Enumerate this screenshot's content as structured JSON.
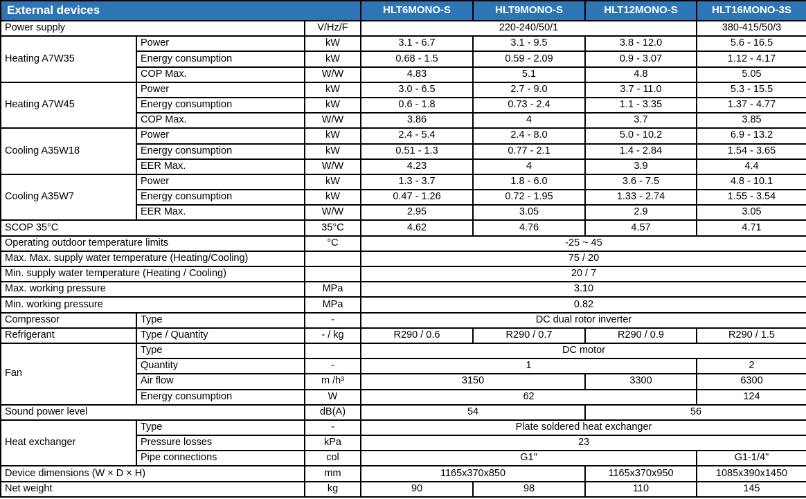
{
  "title": "External devices",
  "models": [
    "HLT6MONO-S",
    "HLT9MONO-S",
    "HLT12MONO-S",
    "HLT16MONO-3S"
  ],
  "colors": {
    "header_bg": "#2e75b6",
    "header_text": "#ffffff",
    "border": "#000000",
    "cell_bg": "#ffffff",
    "cell_text": "#000000"
  },
  "rows": [
    {
      "label": "Power supply",
      "unit": "V/Hz/F",
      "values": [
        {
          "text": "220-240/50/1",
          "span": 3
        },
        {
          "text": "380-415/50/3",
          "span": 1
        }
      ]
    },
    {
      "group": "Heating A7W35",
      "group_rowspan": 3,
      "sublabel": "Power",
      "unit": "kW",
      "values": [
        {
          "text": "3.1 - 6.7",
          "span": 1
        },
        {
          "text": "3.1 - 9.5",
          "span": 1
        },
        {
          "text": "3.8 - 12.0",
          "span": 1
        },
        {
          "text": "5.6 - 16.5",
          "span": 1
        }
      ]
    },
    {
      "sublabel": "Energy consumption",
      "unit": "kW",
      "values": [
        {
          "text": "0.68 - 1.5",
          "span": 1
        },
        {
          "text": "0.59 - 2.09",
          "span": 1
        },
        {
          "text": "0.9 - 3.07",
          "span": 1
        },
        {
          "text": "1.12 - 4.17",
          "span": 1
        }
      ]
    },
    {
      "sublabel": "COP Max.",
      "unit": "W/W",
      "values": [
        {
          "text": "4.83",
          "span": 1
        },
        {
          "text": "5.1",
          "span": 1
        },
        {
          "text": "4.8",
          "span": 1
        },
        {
          "text": "5.05",
          "span": 1
        }
      ]
    },
    {
      "group": "Heating A7W45",
      "group_rowspan": 3,
      "sublabel": "Power",
      "unit": "kW",
      "values": [
        {
          "text": "3.0 - 6.5",
          "span": 1
        },
        {
          "text": "2.7 - 9.0",
          "span": 1
        },
        {
          "text": "3.7 - 11.0",
          "span": 1
        },
        {
          "text": "5.3 - 15.5",
          "span": 1
        }
      ]
    },
    {
      "sublabel": "Energy consumption",
      "unit": "kW",
      "values": [
        {
          "text": "0.6 - 1.8",
          "span": 1
        },
        {
          "text": "0.73 - 2.4",
          "span": 1
        },
        {
          "text": "1.1 - 3.35",
          "span": 1
        },
        {
          "text": "1.37 - 4.77",
          "span": 1
        }
      ]
    },
    {
      "sublabel": "COP Max.",
      "unit": "W/W",
      "values": [
        {
          "text": "3.86",
          "span": 1
        },
        {
          "text": "4",
          "span": 1
        },
        {
          "text": "3.7",
          "span": 1
        },
        {
          "text": "3.85",
          "span": 1
        }
      ]
    },
    {
      "group": "Cooling A35W18",
      "group_rowspan": 3,
      "sublabel": "Power",
      "unit": "kW",
      "values": [
        {
          "text": "2.4 - 5.4",
          "span": 1
        },
        {
          "text": "2.4 - 8.0",
          "span": 1
        },
        {
          "text": "5.0 - 10.2",
          "span": 1
        },
        {
          "text": "6.9 - 13.2",
          "span": 1
        }
      ]
    },
    {
      "sublabel": "Energy consumption",
      "unit": "kW",
      "values": [
        {
          "text": "0.51 - 1.3",
          "span": 1
        },
        {
          "text": "0.77 - 2.1",
          "span": 1
        },
        {
          "text": "1.4 - 2.84",
          "span": 1
        },
        {
          "text": "1.54 - 3.65",
          "span": 1
        }
      ]
    },
    {
      "sublabel": "EER Max.",
      "unit": "W/W",
      "values": [
        {
          "text": "4.23",
          "span": 1
        },
        {
          "text": "4",
          "span": 1
        },
        {
          "text": "3.9",
          "span": 1
        },
        {
          "text": "4.4",
          "span": 1
        }
      ]
    },
    {
      "group": "Cooling A35W7",
      "group_rowspan": 3,
      "sublabel": "Power",
      "unit": "kW",
      "values": [
        {
          "text": "1.3 - 3.7",
          "span": 1
        },
        {
          "text": "1.8 - 6.0",
          "span": 1
        },
        {
          "text": "3.6 - 7.5",
          "span": 1
        },
        {
          "text": "4.8 - 10.1",
          "span": 1
        }
      ]
    },
    {
      "sublabel": "Energy consumption",
      "unit": "kW",
      "values": [
        {
          "text": "0.47 - 1.26",
          "span": 1
        },
        {
          "text": "0.72 - 1.95",
          "span": 1
        },
        {
          "text": "1.33 - 2.74",
          "span": 1
        },
        {
          "text": "1.55 - 3.54",
          "span": 1
        }
      ]
    },
    {
      "sublabel": "EER Max.",
      "unit": "W/W",
      "values": [
        {
          "text": "2.95",
          "span": 1
        },
        {
          "text": "3.05",
          "span": 1
        },
        {
          "text": "2.9",
          "span": 1
        },
        {
          "text": "3.05",
          "span": 1
        }
      ]
    },
    {
      "label": "SCOP 35°C",
      "unit": "35°C",
      "values": [
        {
          "text": "4.62",
          "span": 1
        },
        {
          "text": "4.76",
          "span": 1
        },
        {
          "text": "4.57",
          "span": 1
        },
        {
          "text": "4.71",
          "span": 1
        }
      ]
    },
    {
      "label": "Operating outdoor temperature limits",
      "unit": "°C",
      "values": [
        {
          "text": "-25 ~ 45",
          "span": 4
        }
      ]
    },
    {
      "label": "Max. Max. supply water temperature (Heating/Cooling)",
      "unit": "",
      "values": [
        {
          "text": "75 / 20",
          "span": 4
        }
      ]
    },
    {
      "label": "Min. supply water temperature (Heating / Cooling)",
      "unit": "",
      "values": [
        {
          "text": "20 / 7",
          "span": 4
        }
      ]
    },
    {
      "label": "Max. working pressure",
      "unit": "MPa",
      "values": [
        {
          "text": "3.10",
          "span": 4
        }
      ]
    },
    {
      "label": "Min. working pressure",
      "unit": "MPa",
      "values": [
        {
          "text": "0.82",
          "span": 4
        }
      ]
    },
    {
      "group": "Compressor",
      "group_rowspan": 1,
      "sublabel": "Type",
      "unit": "-",
      "values": [
        {
          "text": "DC dual rotor inverter",
          "span": 4
        }
      ]
    },
    {
      "group": "Refrigerant",
      "group_rowspan": 1,
      "sublabel": "Type / Quantity",
      "unit": "- / kg",
      "values": [
        {
          "text": "R290 / 0.6",
          "span": 1
        },
        {
          "text": "R290 / 0.7",
          "span": 1
        },
        {
          "text": "R290 / 0.9",
          "span": 1
        },
        {
          "text": "R290 / 1.5",
          "span": 1
        }
      ]
    },
    {
      "group": "Fan",
      "group_rowspan": 4,
      "sublabel": "Type",
      "unit": "",
      "values": [
        {
          "text": "DC motor",
          "span": 4
        }
      ]
    },
    {
      "sublabel": "Quantity",
      "unit": "-",
      "values": [
        {
          "text": "1",
          "span": 3
        },
        {
          "text": "2",
          "span": 1
        }
      ]
    },
    {
      "sublabel": "Air flow",
      "unit": "m /h³",
      "values": [
        {
          "text": "3150",
          "span": 2
        },
        {
          "text": "3300",
          "span": 1
        },
        {
          "text": "6300",
          "span": 1
        }
      ]
    },
    {
      "sublabel": "Energy consumption",
      "unit": "W",
      "values": [
        {
          "text": "62",
          "span": 3
        },
        {
          "text": "124",
          "span": 1
        }
      ]
    },
    {
      "label": "Sound power level",
      "unit": "dB(A)",
      "values": [
        {
          "text": "54",
          "span": 2
        },
        {
          "text": "56",
          "span": 2
        }
      ]
    },
    {
      "group": "Heat exchanger",
      "group_rowspan": 3,
      "sublabel": "Type",
      "unit": "-",
      "values": [
        {
          "text": "Plate soldered heat exchanger",
          "span": 4
        }
      ]
    },
    {
      "sublabel": "Pressure losses",
      "unit": "kPa",
      "values": [
        {
          "text": "23",
          "span": 4
        }
      ]
    },
    {
      "sublabel": "Pipe connections",
      "unit": "col",
      "values": [
        {
          "text": "G1\"",
          "span": 3
        },
        {
          "text": "G1-1/4\"",
          "span": 1
        }
      ]
    },
    {
      "label": "Device dimensions (W × D × H)",
      "unit": "mm",
      "values": [
        {
          "text": "1165x370x850",
          "span": 2
        },
        {
          "text": "1165x370x950",
          "span": 1
        },
        {
          "text": "1085x390x1450",
          "span": 1
        }
      ]
    },
    {
      "label": "Net weight",
      "unit": "kg",
      "values": [
        {
          "text": "90",
          "span": 1
        },
        {
          "text": "98",
          "span": 1
        },
        {
          "text": "110",
          "span": 1
        },
        {
          "text": "145",
          "span": 1
        }
      ]
    }
  ]
}
